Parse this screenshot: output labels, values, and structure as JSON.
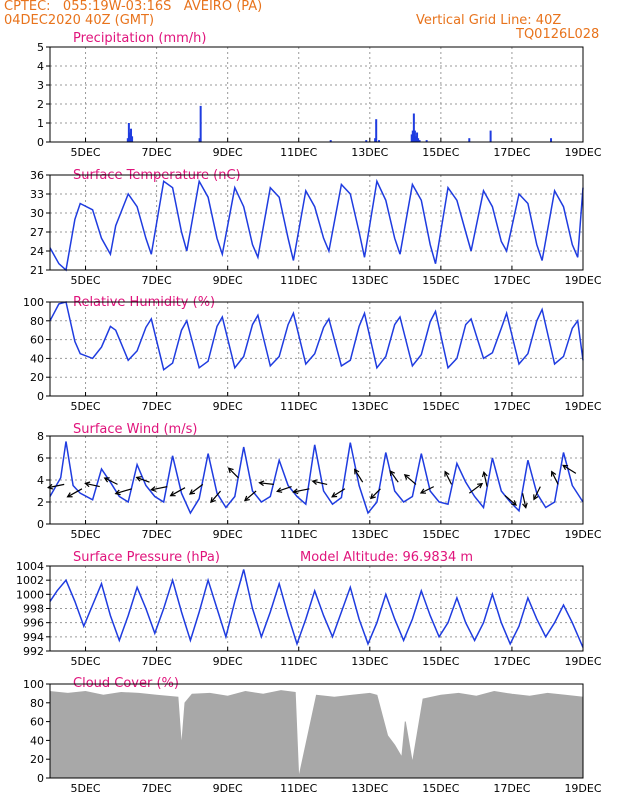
{
  "header": {
    "line1_left": "CPTEC:   055:19W-03:16S   AVEIRO (PA)",
    "line2_left": "04DEC2020 40Z (GMT)",
    "line2_right": "Vertical Grid Line: 40Z",
    "line3_right": "TQ0126L028"
  },
  "colors": {
    "header": "#e8731c",
    "title": "#e0147c",
    "series": "#1f3ce0",
    "wind_arrow": "#000000",
    "cloud": "#a8a8a8",
    "grid": "#9a9a9a"
  },
  "chart_data": [
    {
      "id": "precip",
      "type": "bar",
      "title": "Precipitation (mm/h)",
      "x_tick_labels": [
        "5DEC",
        "7DEC",
        "9DEC",
        "11DEC",
        "13DEC",
        "15DEC",
        "17DEC",
        "19DEC"
      ],
      "xlim": [
        0,
        15
      ],
      "ylim": [
        0,
        5
      ],
      "y_ticks": [
        0,
        1,
        2,
        3,
        4,
        5
      ],
      "grid": true,
      "x": [
        2.19,
        2.22,
        2.25,
        2.28,
        2.31,
        4.21,
        4.24,
        7.9,
        8.9,
        9.15,
        9.18,
        9.26,
        10.18,
        10.21,
        10.24,
        10.27,
        10.3,
        10.33,
        10.36,
        10.4,
        10.6,
        11.8,
        12.4,
        14.1
      ],
      "values": [
        0.2,
        1.0,
        0.5,
        0.7,
        0.3,
        0.2,
        1.9,
        0.1,
        0.1,
        0.2,
        1.2,
        0.1,
        0.4,
        0.6,
        1.5,
        0.6,
        0.3,
        0.5,
        0.2,
        0.1,
        0.1,
        0.2,
        0.6,
        0.2
      ]
    },
    {
      "id": "temp",
      "type": "line",
      "title": "Surface Temperature (nC)",
      "x_tick_labels": [
        "5DEC",
        "7DEC",
        "9DEC",
        "11DEC",
        "13DEC",
        "15DEC",
        "17DEC",
        "19DEC"
      ],
      "xlim": [
        0,
        15
      ],
      "ylim": [
        21,
        36
      ],
      "y_ticks": [
        21,
        24,
        27,
        30,
        33,
        36
      ],
      "grid": true,
      "x": [
        0.0,
        0.25,
        0.45,
        0.7,
        0.85,
        1.2,
        1.45,
        1.7,
        1.85,
        2.2,
        2.45,
        2.7,
        2.85,
        3.2,
        3.45,
        3.7,
        3.85,
        4.2,
        4.45,
        4.7,
        4.85,
        5.2,
        5.45,
        5.7,
        5.85,
        6.2,
        6.45,
        6.7,
        6.85,
        7.2,
        7.45,
        7.7,
        7.85,
        8.2,
        8.45,
        8.7,
        8.85,
        9.2,
        9.45,
        9.7,
        9.85,
        10.2,
        10.45,
        10.7,
        10.85,
        11.2,
        11.45,
        11.7,
        11.85,
        12.2,
        12.45,
        12.7,
        12.85,
        13.2,
        13.45,
        13.7,
        13.85,
        14.2,
        14.45,
        14.7,
        14.85,
        15.0
      ],
      "values": [
        24.5,
        22.0,
        21.0,
        29.0,
        31.5,
        30.5,
        26.0,
        23.5,
        28.0,
        33.0,
        31.0,
        26.0,
        23.5,
        35.0,
        34.0,
        27.0,
        24.0,
        35.0,
        32.5,
        26.0,
        23.5,
        34.0,
        31.0,
        25.0,
        23.0,
        34.0,
        32.5,
        26.0,
        22.5,
        33.5,
        31.0,
        26.0,
        24.0,
        34.5,
        33.0,
        27.0,
        23.0,
        35.0,
        32.0,
        26.0,
        23.5,
        34.5,
        32.0,
        25.0,
        22.0,
        34.0,
        32.0,
        27.0,
        24.0,
        33.5,
        31.0,
        25.5,
        24.0,
        33.0,
        31.5,
        25.0,
        22.5,
        33.5,
        31.0,
        25.0,
        23.0,
        34.0
      ]
    },
    {
      "id": "rh",
      "type": "line",
      "title": "Relative Humidity (%)",
      "x_tick_labels": [
        "5DEC",
        "7DEC",
        "9DEC",
        "11DEC",
        "13DEC",
        "15DEC",
        "17DEC",
        "19DEC"
      ],
      "xlim": [
        0,
        15
      ],
      "ylim": [
        0,
        100
      ],
      "y_ticks": [
        0,
        20,
        40,
        60,
        80,
        100
      ],
      "grid": true,
      "x": [
        0.0,
        0.25,
        0.45,
        0.7,
        0.85,
        1.2,
        1.45,
        1.7,
        1.85,
        2.2,
        2.45,
        2.7,
        2.85,
        3.2,
        3.45,
        3.7,
        3.85,
        4.2,
        4.45,
        4.7,
        4.85,
        5.2,
        5.45,
        5.7,
        5.85,
        6.2,
        6.45,
        6.7,
        6.85,
        7.2,
        7.45,
        7.7,
        7.85,
        8.2,
        8.45,
        8.7,
        8.85,
        9.2,
        9.45,
        9.7,
        9.85,
        10.2,
        10.45,
        10.7,
        10.85,
        11.2,
        11.45,
        11.7,
        11.85,
        12.2,
        12.45,
        12.7,
        12.85,
        13.2,
        13.45,
        13.7,
        13.85,
        14.2,
        14.45,
        14.7,
        14.85,
        15.0
      ],
      "values": [
        80,
        98,
        100,
        58,
        45,
        40,
        52,
        74,
        70,
        38,
        48,
        73,
        82,
        28,
        35,
        70,
        80,
        30,
        37,
        74,
        84,
        30,
        42,
        76,
        86,
        32,
        42,
        76,
        88,
        34,
        45,
        73,
        82,
        32,
        38,
        74,
        88,
        30,
        42,
        76,
        84,
        32,
        44,
        79,
        90,
        30,
        40,
        76,
        82,
        40,
        46,
        72,
        88,
        34,
        45,
        80,
        92,
        34,
        42,
        72,
        80,
        38
      ]
    },
    {
      "id": "wind",
      "type": "line",
      "title": "Surface Wind (m/s)",
      "x_tick_labels": [
        "5DEC",
        "7DEC",
        "9DEC",
        "11DEC",
        "13DEC",
        "15DEC",
        "17DEC",
        "19DEC"
      ],
      "xlim": [
        0,
        15
      ],
      "ylim": [
        0,
        8
      ],
      "y_ticks": [
        0,
        2,
        4,
        6,
        8
      ],
      "grid": true,
      "x": [
        0.0,
        0.3,
        0.45,
        0.65,
        0.85,
        1.2,
        1.45,
        1.7,
        1.95,
        2.2,
        2.45,
        2.7,
        2.95,
        3.2,
        3.45,
        3.7,
        3.95,
        4.2,
        4.45,
        4.7,
        4.95,
        5.2,
        5.45,
        5.7,
        5.95,
        6.2,
        6.45,
        6.7,
        6.95,
        7.2,
        7.45,
        7.7,
        7.95,
        8.2,
        8.45,
        8.7,
        8.95,
        9.2,
        9.45,
        9.7,
        9.95,
        10.2,
        10.45,
        10.7,
        10.95,
        11.2,
        11.45,
        11.7,
        11.95,
        12.2,
        12.45,
        12.7,
        12.95,
        13.2,
        13.45,
        13.7,
        13.95,
        14.2,
        14.45,
        14.7,
        15.0
      ],
      "values": [
        2.5,
        4.2,
        7.5,
        3.5,
        2.8,
        2.2,
        5.0,
        3.8,
        2.5,
        2.0,
        5.4,
        3.5,
        2.5,
        2.0,
        6.2,
        2.8,
        1.0,
        2.3,
        6.4,
        2.8,
        1.5,
        2.5,
        7.0,
        3.0,
        2.0,
        2.5,
        5.8,
        3.5,
        2.5,
        1.8,
        7.2,
        3.0,
        1.8,
        2.4,
        7.4,
        3.5,
        1.0,
        2.0,
        6.5,
        3.0,
        2.0,
        2.5,
        6.4,
        3.0,
        2.0,
        1.8,
        5.5,
        3.8,
        2.5,
        1.5,
        6.0,
        3.0,
        2.0,
        1.2,
        5.8,
        2.8,
        1.5,
        2.0,
        6.5,
        3.5,
        2.0
      ],
      "arrows": [
        {
          "x": 0.4,
          "y": 3.6,
          "u": -1.0,
          "v": -0.2
        },
        {
          "x": 0.9,
          "y": 3.2,
          "u": -0.9,
          "v": -0.5
        },
        {
          "x": 1.4,
          "y": 3.4,
          "u": -0.9,
          "v": 0.2
        },
        {
          "x": 1.9,
          "y": 3.6,
          "u": -0.8,
          "v": 0.4
        },
        {
          "x": 2.3,
          "y": 3.2,
          "u": -1.0,
          "v": -0.3
        },
        {
          "x": 2.8,
          "y": 3.8,
          "u": -0.8,
          "v": 0.3
        },
        {
          "x": 3.3,
          "y": 3.4,
          "u": -1.0,
          "v": -0.2
        },
        {
          "x": 3.8,
          "y": 3.3,
          "u": -0.9,
          "v": -0.5
        },
        {
          "x": 4.3,
          "y": 3.6,
          "u": -0.8,
          "v": -0.6
        },
        {
          "x": 4.8,
          "y": 3.0,
          "u": -0.6,
          "v": -0.7
        },
        {
          "x": 5.3,
          "y": 4.2,
          "u": -0.6,
          "v": 0.6
        },
        {
          "x": 5.8,
          "y": 3.0,
          "u": -0.7,
          "v": -0.6
        },
        {
          "x": 6.3,
          "y": 3.6,
          "u": -0.9,
          "v": 0.1
        },
        {
          "x": 6.8,
          "y": 3.4,
          "u": -0.9,
          "v": -0.3
        },
        {
          "x": 7.3,
          "y": 3.2,
          "u": -1.0,
          "v": -0.2
        },
        {
          "x": 7.8,
          "y": 3.6,
          "u": -0.9,
          "v": 0.2
        },
        {
          "x": 8.3,
          "y": 3.2,
          "u": -0.8,
          "v": -0.5
        },
        {
          "x": 8.8,
          "y": 3.8,
          "u": -0.5,
          "v": 0.8
        },
        {
          "x": 9.3,
          "y": 3.2,
          "u": -0.6,
          "v": -0.6
        },
        {
          "x": 9.8,
          "y": 3.8,
          "u": -0.5,
          "v": 0.7
        },
        {
          "x": 10.3,
          "y": 3.6,
          "u": -0.7,
          "v": 0.6
        },
        {
          "x": 10.8,
          "y": 3.4,
          "u": -0.8,
          "v": -0.4
        },
        {
          "x": 11.3,
          "y": 3.6,
          "u": -0.4,
          "v": 0.8
        },
        {
          "x": 11.8,
          "y": 2.8,
          "u": 0.8,
          "v": 0.6
        },
        {
          "x": 12.3,
          "y": 3.4,
          "u": -0.2,
          "v": 0.9
        },
        {
          "x": 12.8,
          "y": 2.6,
          "u": 0.7,
          "v": -0.6
        },
        {
          "x": 13.3,
          "y": 2.8,
          "u": 0.2,
          "v": -0.9
        },
        {
          "x": 13.8,
          "y": 3.4,
          "u": -0.4,
          "v": -0.8
        },
        {
          "x": 14.3,
          "y": 3.6,
          "u": -0.4,
          "v": 0.8
        },
        {
          "x": 14.8,
          "y": 4.6,
          "u": -0.8,
          "v": 0.5
        }
      ]
    },
    {
      "id": "pressure",
      "type": "line",
      "title": "Surface Pressure (hPa)",
      "subtitle": "Model Altitude: 96.9834 m",
      "x_tick_labels": [
        "5DEC",
        "7DEC",
        "9DEC",
        "11DEC",
        "13DEC",
        "15DEC",
        "17DEC",
        "19DEC"
      ],
      "xlim": [
        0,
        15
      ],
      "ylim": [
        992,
        1004
      ],
      "y_ticks": [
        992,
        994,
        996,
        998,
        1000,
        1002,
        1004
      ],
      "grid": true,
      "x": [
        0.0,
        0.2,
        0.45,
        0.7,
        0.95,
        1.2,
        1.45,
        1.7,
        1.95,
        2.2,
        2.45,
        2.7,
        2.95,
        3.2,
        3.45,
        3.7,
        3.95,
        4.2,
        4.45,
        4.7,
        4.95,
        5.2,
        5.45,
        5.7,
        5.95,
        6.2,
        6.45,
        6.7,
        6.95,
        7.2,
        7.45,
        7.7,
        7.95,
        8.2,
        8.45,
        8.7,
        8.95,
        9.2,
        9.45,
        9.7,
        9.95,
        10.2,
        10.45,
        10.7,
        10.95,
        11.2,
        11.45,
        11.7,
        11.95,
        12.2,
        12.45,
        12.7,
        12.95,
        13.2,
        13.45,
        13.7,
        13.95,
        14.2,
        14.45,
        14.7,
        15.0
      ],
      "values": [
        999.0,
        1000.5,
        1002.0,
        999.0,
        995.5,
        998.5,
        1001.5,
        997.0,
        993.5,
        997.0,
        1001.0,
        998.0,
        994.5,
        998.0,
        1002.0,
        997.5,
        993.5,
        997.5,
        1002.0,
        998.0,
        994.0,
        999.0,
        1003.5,
        998.0,
        994.0,
        997.5,
        1001.5,
        997.0,
        993.0,
        996.5,
        1000.5,
        997.0,
        994.0,
        997.5,
        1001.0,
        996.5,
        993.0,
        996.0,
        1000.0,
        996.5,
        993.5,
        996.5,
        1000.5,
        997.0,
        994.0,
        996.0,
        999.5,
        996.0,
        993.5,
        996.0,
        1000.0,
        996.0,
        993.0,
        995.5,
        999.5,
        996.5,
        994.0,
        996.0,
        998.5,
        996.0,
        992.5
      ]
    },
    {
      "id": "cloud",
      "type": "area",
      "title": "Cloud Cover (%)",
      "x_tick_labels": [
        "5DEC",
        "7DEC",
        "9DEC",
        "11DEC",
        "13DEC",
        "15DEC",
        "17DEC",
        "19DEC"
      ],
      "xlim": [
        0,
        15
      ],
      "ylim": [
        0,
        100
      ],
      "y_ticks": [
        0,
        20,
        40,
        60,
        80,
        100
      ],
      "grid": false,
      "x": [
        0.0,
        0.5,
        1.0,
        1.5,
        2.0,
        2.5,
        3.0,
        3.6,
        3.7,
        3.8,
        4.0,
        4.5,
        5.0,
        5.5,
        6.0,
        6.5,
        6.9,
        7.0,
        7.5,
        8.0,
        8.5,
        9.0,
        9.2,
        9.5,
        9.7,
        9.9,
        10.0,
        10.1,
        10.2,
        10.5,
        11.0,
        11.5,
        12.0,
        12.5,
        13.0,
        13.5,
        14.0,
        14.5,
        15.0
      ],
      "values": [
        92,
        90,
        92,
        88,
        91,
        90,
        88,
        86,
        33,
        80,
        89,
        90,
        87,
        92,
        89,
        93,
        91,
        0,
        88,
        86,
        88,
        90,
        88,
        45,
        35,
        22,
        60,
        38,
        16,
        84,
        88,
        90,
        87,
        92,
        89,
        87,
        90,
        88,
        86
      ]
    }
  ]
}
